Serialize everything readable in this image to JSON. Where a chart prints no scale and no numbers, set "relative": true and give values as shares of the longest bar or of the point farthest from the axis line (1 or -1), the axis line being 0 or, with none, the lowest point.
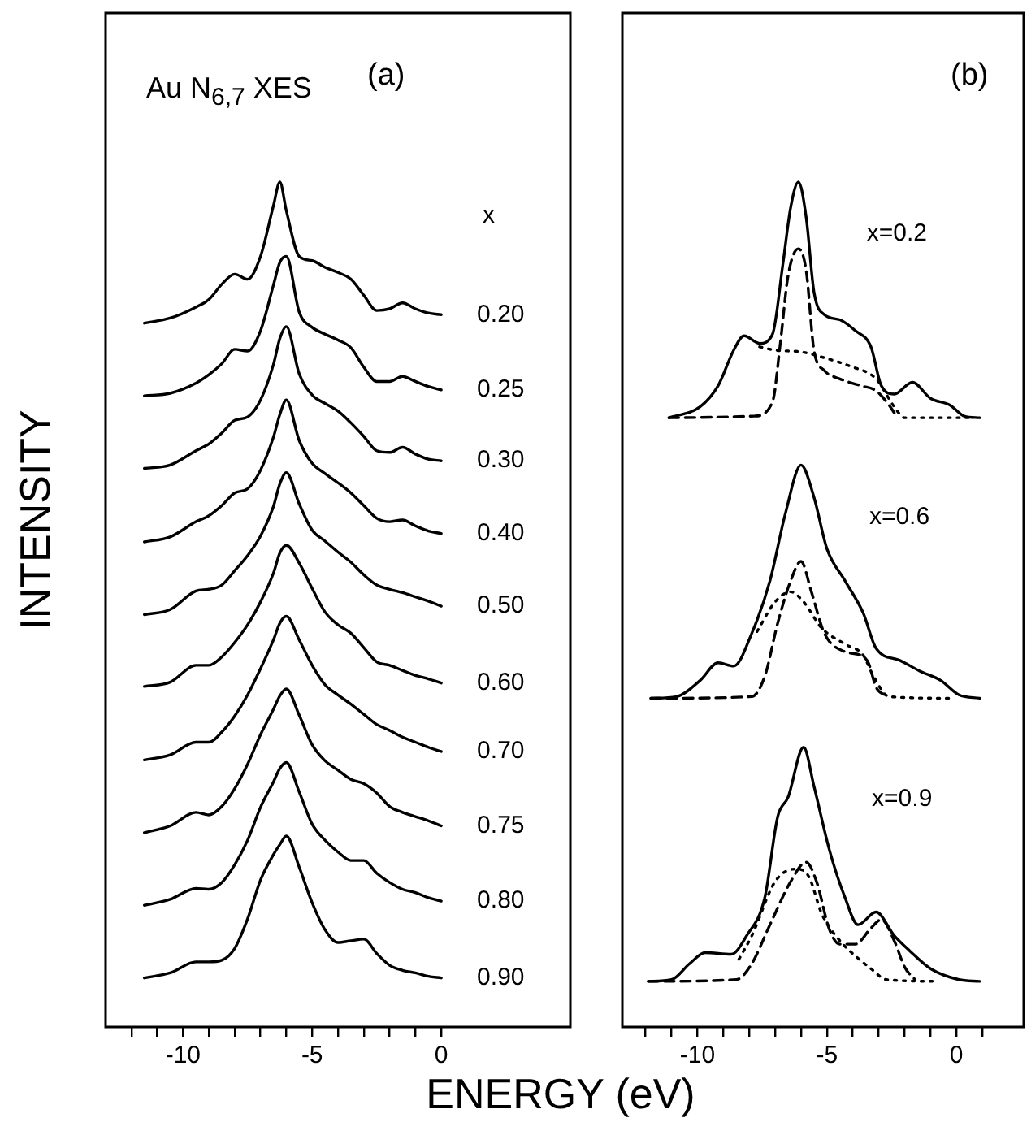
{
  "chart_data": [
    {
      "type": "line",
      "relative": true,
      "title": "Au N$_{6,7}$ XES",
      "xlabel": "ENERGY (eV)",
      "ylabel": "INTENSITY",
      "annotations": [
        "(a)",
        "x"
      ],
      "x": [
        -11.5,
        -10.5,
        -9.5,
        -9,
        -8.5,
        -8,
        -7.5,
        -7,
        -6.5,
        -6.25,
        -6,
        -5.5,
        -5,
        -4.5,
        -4,
        -3.5,
        -3,
        -2.5,
        -2,
        -1.5,
        -1,
        -0.5,
        0
      ],
      "xlim": [
        -13,
        5
      ],
      "xticks": [
        {
          "value": -12,
          "label": null
        },
        {
          "value": -11,
          "label": null
        },
        -10,
        {
          "value": -9,
          "label": null
        },
        {
          "value": -8,
          "label": null
        },
        {
          "value": -7,
          "label": null
        },
        {
          "value": -6,
          "label": null
        },
        -5,
        {
          "value": -4,
          "label": null
        },
        {
          "value": -3,
          "label": null
        },
        {
          "value": -2,
          "label": null
        },
        {
          "value": -1,
          "label": null
        },
        0
      ],
      "line_style": "solid",
      "series": [
        {
          "name": "0.20",
          "color": "#000000",
          "values": [
            0.833,
            0.839,
            0.852,
            0.861,
            0.879,
            0.891,
            0.885,
            0.912,
            0.972,
            1,
            0.966,
            0.912,
            0.907,
            0.899,
            0.893,
            0.885,
            0.866,
            0.848,
            0.85,
            0.857,
            0.85,
            0.845,
            0.843
          ]
        },
        {
          "name": "0.25",
          "color": "#000000",
          "values": [
            0.747,
            0.75,
            0.762,
            0.772,
            0.785,
            0.802,
            0.8,
            0.824,
            0.878,
            0.905,
            0.912,
            0.846,
            0.828,
            0.82,
            0.813,
            0.804,
            0.781,
            0.764,
            0.764,
            0.77,
            0.764,
            0.758,
            0.754
          ]
        },
        {
          "name": "0.30",
          "color": "#000000",
          "values": [
            0.661,
            0.665,
            0.682,
            0.69,
            0.703,
            0.718,
            0.722,
            0.742,
            0.784,
            0.815,
            0.829,
            0.773,
            0.748,
            0.738,
            0.729,
            0.715,
            0.699,
            0.682,
            0.68,
            0.686,
            0.678,
            0.672,
            0.67
          ]
        },
        {
          "name": "0.40",
          "color": "#000000",
          "values": [
            0.574,
            0.58,
            0.598,
            0.605,
            0.617,
            0.632,
            0.637,
            0.659,
            0.698,
            0.725,
            0.742,
            0.694,
            0.667,
            0.655,
            0.644,
            0.632,
            0.617,
            0.602,
            0.598,
            0.6,
            0.593,
            0.587,
            0.584
          ]
        },
        {
          "name": "0.50",
          "color": "#000000",
          "values": [
            0.488,
            0.494,
            0.516,
            0.518,
            0.523,
            0.54,
            0.558,
            0.581,
            0.616,
            0.643,
            0.656,
            0.619,
            0.588,
            0.575,
            0.562,
            0.55,
            0.535,
            0.523,
            0.518,
            0.514,
            0.509,
            0.504,
            0.498
          ]
        },
        {
          "name": "0.60",
          "color": "#000000",
          "values": [
            0.403,
            0.408,
            0.428,
            0.428,
            0.438,
            0.455,
            0.476,
            0.503,
            0.537,
            0.561,
            0.57,
            0.549,
            0.519,
            0.491,
            0.476,
            0.466,
            0.449,
            0.432,
            0.428,
            0.422,
            0.416,
            0.412,
            0.407
          ]
        },
        {
          "name": "0.70",
          "color": "#000000",
          "values": [
            0.316,
            0.322,
            0.337,
            0.337,
            0.349,
            0.368,
            0.393,
            0.424,
            0.458,
            0.478,
            0.486,
            0.458,
            0.428,
            0.405,
            0.393,
            0.382,
            0.37,
            0.358,
            0.351,
            0.343,
            0.337,
            0.331,
            0.326
          ]
        },
        {
          "name": "0.75",
          "color": "#000000",
          "values": [
            0.23,
            0.238,
            0.254,
            0.251,
            0.261,
            0.282,
            0.311,
            0.346,
            0.376,
            0.392,
            0.4,
            0.369,
            0.334,
            0.315,
            0.304,
            0.293,
            0.288,
            0.277,
            0.261,
            0.254,
            0.249,
            0.244,
            0.238
          ]
        },
        {
          "name": "0.80",
          "color": "#000000",
          "values": [
            0.144,
            0.151,
            0.164,
            0.163,
            0.171,
            0.192,
            0.221,
            0.26,
            0.29,
            0.306,
            0.313,
            0.278,
            0.24,
            0.221,
            0.207,
            0.197,
            0.197,
            0.182,
            0.171,
            0.163,
            0.159,
            0.153,
            0.149
          ]
        },
        {
          "name": "0.90",
          "color": "#000000",
          "values": [
            0.058,
            0.064,
            0.077,
            0.077,
            0.079,
            0.093,
            0.128,
            0.174,
            0.204,
            0.216,
            0.226,
            0.189,
            0.147,
            0.115,
            0.1,
            0.102,
            0.104,
            0.087,
            0.073,
            0.067,
            0.064,
            0.06,
            0.058
          ]
        }
      ]
    },
    {
      "type": "line",
      "relative": true,
      "annotations": [
        "(b)"
      ],
      "xlim": [
        -12.9,
        2.6
      ],
      "xticks": [
        {
          "value": -12,
          "label": null
        },
        {
          "value": -11,
          "label": null
        },
        -10,
        {
          "value": -9,
          "label": null
        },
        {
          "value": -8,
          "label": null
        },
        {
          "value": -7,
          "label": null
        },
        {
          "value": -6,
          "label": null
        },
        -5,
        {
          "value": -4,
          "label": null
        },
        {
          "value": -3,
          "label": null
        },
        {
          "value": -2,
          "label": null
        },
        {
          "value": -1,
          "label": null
        },
        0,
        {
          "value": 1,
          "label": null
        }
      ],
      "series": [
        {
          "name": "x=0.2",
          "color": "#000000",
          "line_style": "solid",
          "x": [
            -11.1,
            -9.9,
            -9.2,
            -8.6,
            -8.2,
            -7.6,
            -7.1,
            -6.7,
            -6.4,
            -6.1,
            -5.8,
            -5.5,
            -5.1,
            -4.5,
            -3.9,
            -3.3,
            -2.9,
            -2.4,
            -1.7,
            -1.0,
            -0.25,
            0.3,
            0.9
          ],
          "values": [
            0.721,
            0.734,
            0.759,
            0.801,
            0.818,
            0.809,
            0.82,
            0.903,
            0.97,
            1,
            0.958,
            0.87,
            0.843,
            0.837,
            0.824,
            0.805,
            0.759,
            0.749,
            0.763,
            0.744,
            0.736,
            0.723,
            0.721
          ]
        },
        {
          "color": "#000000",
          "line_style": "dashed",
          "x": [
            -11.1,
            -7.8,
            -7.1,
            -6.8,
            -6.5,
            -6.1,
            -5.8,
            -5.5,
            -5.1,
            -4.5,
            -3.7,
            -3.1,
            -2.6,
            -2.4
          ],
          "values": [
            0.721,
            0.723,
            0.74,
            0.809,
            0.889,
            0.921,
            0.895,
            0.801,
            0.777,
            0.767,
            0.759,
            0.753,
            0.736,
            0.727
          ]
        },
        {
          "color": "#000000",
          "line_style": "dotted",
          "x": [
            -7.6,
            -7.0,
            -6.0,
            -5.1,
            -4.1,
            -3.1,
            -2.4,
            -2.0,
            0.5
          ],
          "values": [
            0.805,
            0.801,
            0.799,
            0.792,
            0.782,
            0.767,
            0.734,
            0.721,
            0.721
          ]
        },
        {
          "name": "x=0.6",
          "color": "#000000",
          "line_style": "solid",
          "x": [
            -11.8,
            -10.8,
            -9.9,
            -9.2,
            -8.6,
            -7.9,
            -7.2,
            -6.6,
            -6.0,
            -5.5,
            -5.0,
            -4.3,
            -3.6,
            -3.1,
            -2.2,
            -1.4,
            -0.6,
            0.1,
            0.9
          ],
          "values": [
            0.389,
            0.391,
            0.41,
            0.431,
            0.427,
            0.466,
            0.528,
            0.608,
            0.665,
            0.627,
            0.566,
            0.528,
            0.49,
            0.448,
            0.434,
            0.421,
            0.41,
            0.393,
            0.389
          ]
        },
        {
          "color": "#000000",
          "line_style": "dashed",
          "x": [
            -11.8,
            -7.9,
            -7.4,
            -6.9,
            -6.4,
            -6.0,
            -5.6,
            -5.1,
            -4.3,
            -3.7,
            -3.4,
            -3.1,
            -2.6
          ],
          "values": [
            0.389,
            0.391,
            0.415,
            0.478,
            0.528,
            0.551,
            0.515,
            0.466,
            0.444,
            0.44,
            0.431,
            0.402,
            0.391
          ]
        },
        {
          "color": "#000000",
          "line_style": "dotted",
          "x": [
            -7.7,
            -7.0,
            -6.4,
            -5.9,
            -5.2,
            -4.3,
            -3.6,
            -3.2,
            -2.6,
            -0.1
          ],
          "values": [
            0.468,
            0.503,
            0.515,
            0.503,
            0.472,
            0.453,
            0.44,
            0.415,
            0.391,
            0.389
          ]
        },
        {
          "name": "x=0.9",
          "color": "#000000",
          "line_style": "solid",
          "x": [
            -11.9,
            -11.0,
            -10.3,
            -9.7,
            -8.7,
            -8.1,
            -7.4,
            -6.9,
            -6.5,
            -5.9,
            -5.5,
            -4.9,
            -4.3,
            -3.8,
            -3.1,
            -2.4,
            -1.8,
            -1.0,
            0.1,
            0.9
          ],
          "values": [
            0.054,
            0.056,
            0.075,
            0.088,
            0.086,
            0.108,
            0.153,
            0.249,
            0.272,
            0.331,
            0.285,
            0.209,
            0.153,
            0.121,
            0.136,
            0.108,
            0.09,
            0.069,
            0.056,
            0.054
          ]
        },
        {
          "color": "#000000",
          "line_style": "dashed",
          "x": [
            -11.9,
            -8.5,
            -7.9,
            -7.2,
            -6.4,
            -5.8,
            -5.4,
            -4.9,
            -4.5,
            -3.9,
            -3.3,
            -2.9,
            -2.4,
            -2.0,
            -1.6
          ],
          "values": [
            0.054,
            0.056,
            0.075,
            0.121,
            0.172,
            0.195,
            0.172,
            0.115,
            0.098,
            0.098,
            0.117,
            0.127,
            0.102,
            0.071,
            0.056
          ]
        },
        {
          "color": "#000000",
          "line_style": "dotted",
          "x": [
            -8.4,
            -7.9,
            -7.0,
            -6.2,
            -5.7,
            -5.2,
            -4.5,
            -3.9,
            -3.3,
            -2.7,
            -0.7
          ],
          "values": [
            0.08,
            0.108,
            0.172,
            0.187,
            0.178,
            0.134,
            0.102,
            0.084,
            0.069,
            0.056,
            0.054
          ]
        }
      ]
    }
  ]
}
